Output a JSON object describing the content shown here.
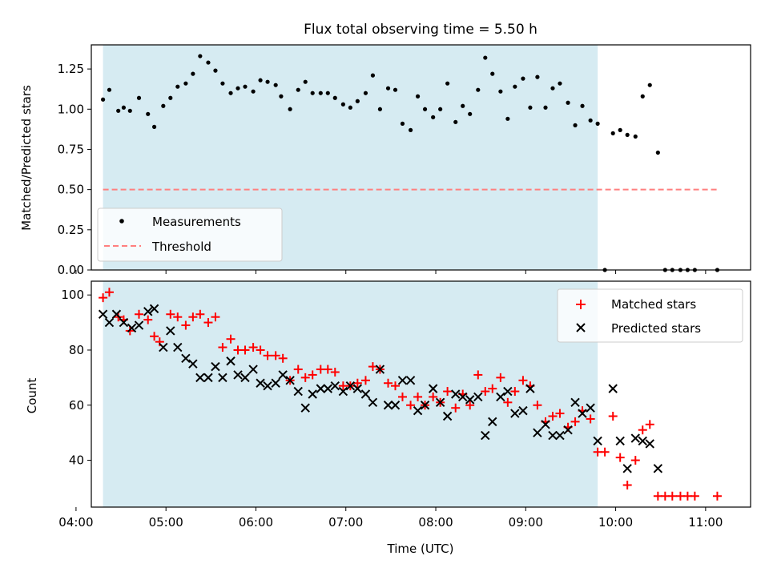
{
  "title": "Flux total observing time = 5.50 h",
  "chart_data": [
    {
      "type": "scatter",
      "ylabel": "Matched/Predicted stars",
      "xlim": [
        4.17,
        11.5
      ],
      "ylim": [
        0,
        1.4
      ],
      "yticks": [
        "0.00",
        "0.25",
        "0.50",
        "0.75",
        "1.00",
        "1.25"
      ],
      "shaded_span": [
        4.3,
        9.8
      ],
      "grid": false,
      "legend": "lower-left",
      "threshold": {
        "name": "Threshold",
        "value": 0.5,
        "x": [
          4.3,
          11.15
        ],
        "color": "#ff7f7f"
      },
      "series": [
        {
          "name": "Measurements",
          "color": "#000000",
          "x": [
            4.3,
            4.37,
            4.47,
            4.53,
            4.6,
            4.7,
            4.8,
            4.87,
            4.97,
            5.05,
            5.13,
            5.22,
            5.3,
            5.38,
            5.47,
            5.55,
            5.63,
            5.72,
            5.8,
            5.88,
            5.97,
            6.05,
            6.13,
            6.22,
            6.28,
            6.38,
            6.47,
            6.55,
            6.63,
            6.72,
            6.8,
            6.88,
            6.97,
            7.05,
            7.13,
            7.22,
            7.3,
            7.38,
            7.47,
            7.55,
            7.63,
            7.72,
            7.8,
            7.88,
            7.97,
            8.05,
            8.13,
            8.22,
            8.3,
            8.38,
            8.47,
            8.55,
            8.63,
            8.72,
            8.8,
            8.88,
            8.97,
            9.05,
            9.13,
            9.22,
            9.3,
            9.38,
            9.47,
            9.55,
            9.63,
            9.72,
            9.8,
            9.88,
            9.97,
            10.05,
            10.13,
            10.22,
            10.3,
            10.38,
            10.47,
            10.55,
            10.63,
            10.72,
            10.8,
            10.88,
            11.13
          ],
          "values": [
            1.06,
            1.12,
            0.99,
            1.01,
            0.99,
            1.07,
            0.97,
            0.89,
            1.02,
            1.07,
            1.14,
            1.16,
            1.22,
            1.33,
            1.29,
            1.24,
            1.16,
            1.1,
            1.13,
            1.14,
            1.11,
            1.18,
            1.17,
            1.15,
            1.08,
            1.0,
            1.12,
            1.17,
            1.1,
            1.1,
            1.1,
            1.07,
            1.03,
            1.01,
            1.05,
            1.1,
            1.21,
            1.0,
            1.13,
            1.12,
            0.91,
            0.87,
            1.08,
            1.0,
            0.95,
            1.0,
            1.16,
            0.92,
            1.02,
            0.97,
            1.12,
            1.32,
            1.22,
            1.11,
            0.94,
            1.14,
            1.19,
            1.01,
            1.2,
            1.01,
            1.13,
            1.16,
            1.04,
            0.9,
            1.02,
            0.93,
            0.91,
            0.0,
            0.85,
            0.87,
            0.84,
            0.83,
            1.08,
            1.15,
            0.73,
            0.0,
            0.0,
            0.0,
            0.0,
            0.0,
            0.0
          ]
        }
      ]
    },
    {
      "type": "scatter",
      "xlabel": "Time (UTC)",
      "ylabel": "Count",
      "xlim": [
        4.17,
        11.5
      ],
      "ylim": [
        23,
        105
      ],
      "yticks": [
        "40",
        "60",
        "80",
        "100"
      ],
      "xticks": [
        "04:00",
        "05:00",
        "06:00",
        "07:00",
        "08:00",
        "09:00",
        "10:00",
        "11:00"
      ],
      "shaded_span": [
        4.3,
        9.8
      ],
      "grid": false,
      "legend": "upper-right",
      "series": [
        {
          "name": "Matched stars",
          "marker": "plus",
          "color": "#ff0000",
          "x": [
            4.3,
            4.37,
            4.47,
            4.53,
            4.6,
            4.7,
            4.8,
            4.87,
            4.93,
            5.05,
            5.13,
            5.22,
            5.3,
            5.38,
            5.47,
            5.55,
            5.63,
            5.72,
            5.8,
            5.88,
            5.97,
            6.05,
            6.13,
            6.22,
            6.3,
            6.38,
            6.47,
            6.55,
            6.63,
            6.72,
            6.8,
            6.88,
            6.97,
            7.05,
            7.13,
            7.22,
            7.3,
            7.38,
            7.47,
            7.55,
            7.63,
            7.72,
            7.8,
            7.88,
            7.97,
            8.05,
            8.13,
            8.22,
            8.3,
            8.38,
            8.47,
            8.55,
            8.63,
            8.72,
            8.8,
            8.88,
            8.97,
            9.05,
            9.13,
            9.22,
            9.3,
            9.38,
            9.47,
            9.55,
            9.63,
            9.72,
            9.8,
            9.88,
            9.97,
            10.05,
            10.13,
            10.22,
            10.3,
            10.38,
            10.47,
            10.55,
            10.63,
            10.72,
            10.8,
            10.88,
            11.13
          ],
          "values": [
            99,
            101,
            92,
            91,
            87,
            93,
            91,
            85,
            83,
            93,
            92,
            89,
            92,
            93,
            90,
            92,
            81,
            84,
            80,
            80,
            81,
            80,
            78,
            78,
            77,
            69,
            73,
            70,
            71,
            73,
            73,
            72,
            67,
            67,
            68,
            69,
            74,
            73,
            68,
            67,
            63,
            60,
            63,
            60,
            63,
            61,
            65,
            59,
            64,
            60,
            71,
            65,
            66,
            70,
            61,
            65,
            69,
            67,
            60,
            54,
            56,
            57,
            52,
            54,
            58,
            55,
            43,
            43,
            56,
            41,
            31,
            40,
            51,
            53,
            27,
            27,
            27,
            27,
            27,
            27,
            27
          ]
        },
        {
          "name": "Predicted stars",
          "marker": "x",
          "color": "#000000",
          "x": [
            4.3,
            4.37,
            4.45,
            4.53,
            4.62,
            4.7,
            4.8,
            4.87,
            4.97,
            5.05,
            5.13,
            5.22,
            5.3,
            5.38,
            5.47,
            5.55,
            5.63,
            5.72,
            5.8,
            5.88,
            5.97,
            6.05,
            6.13,
            6.22,
            6.3,
            6.38,
            6.47,
            6.55,
            6.63,
            6.72,
            6.8,
            6.88,
            6.97,
            7.05,
            7.13,
            7.22,
            7.3,
            7.38,
            7.47,
            7.55,
            7.63,
            7.72,
            7.8,
            7.88,
            7.97,
            8.05,
            8.13,
            8.22,
            8.3,
            8.38,
            8.47,
            8.55,
            8.63,
            8.72,
            8.8,
            8.88,
            8.97,
            9.05,
            9.13,
            9.22,
            9.3,
            9.38,
            9.47,
            9.55,
            9.63,
            9.72,
            9.8,
            9.97,
            10.05,
            10.13,
            10.22,
            10.3,
            10.38,
            10.47
          ],
          "values": [
            93,
            90,
            93,
            90,
            88,
            89,
            94,
            95,
            81,
            87,
            81,
            77,
            75,
            70,
            70,
            74,
            70,
            76,
            71,
            70,
            73,
            68,
            67,
            68,
            71,
            69,
            65,
            59,
            64,
            66,
            66,
            67,
            65,
            67,
            66,
            64,
            61,
            73,
            60,
            60,
            69,
            69,
            58,
            60,
            66,
            61,
            56,
            64,
            63,
            62,
            63,
            49,
            54,
            63,
            65,
            57,
            58,
            66,
            50,
            53,
            49,
            49,
            51,
            61,
            57,
            59,
            47,
            66,
            47,
            37,
            48,
            47,
            46,
            37
          ]
        }
      ]
    }
  ]
}
